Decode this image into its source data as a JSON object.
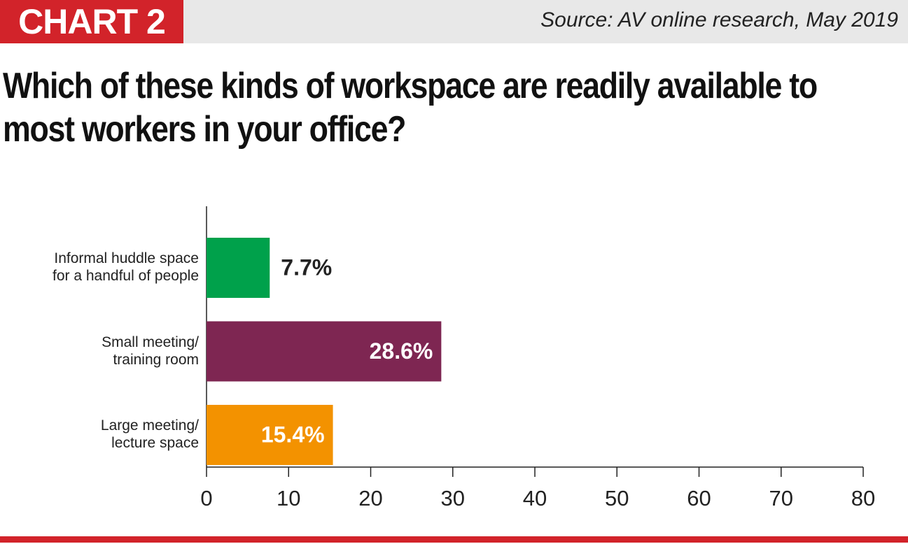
{
  "chart_data": {
    "type": "bar",
    "orientation": "horizontal",
    "badge": "CHART 2",
    "source": "Source: AV online research, May 2019",
    "title": "Which of these kinds of workspace are readily available to most workers in your office?",
    "categories": [
      "Informal huddle space\nfor a handful of people",
      "Small meeting/\ntraining room",
      "Large meeting/\nlecture space"
    ],
    "values": [
      7.7,
      28.6,
      15.4
    ],
    "value_labels": [
      "7.7%",
      "28.6%",
      "15.4%"
    ],
    "colors": [
      "#00a14b",
      "#7e2652",
      "#f39200"
    ],
    "xlim": [
      0,
      80
    ],
    "xticks": [
      0,
      10,
      20,
      30,
      40,
      50,
      60,
      70,
      80
    ]
  }
}
